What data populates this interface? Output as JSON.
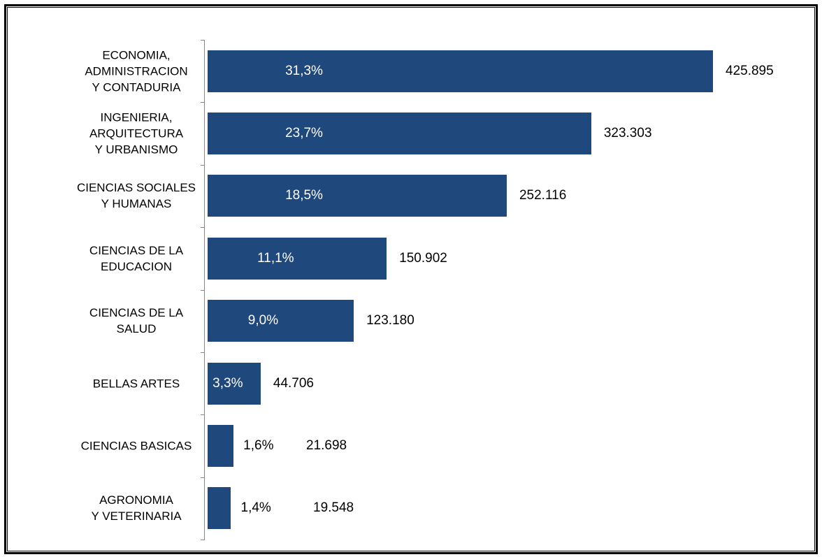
{
  "chart_data": {
    "type": "hbar",
    "categories": [
      "ECONOMIA,\nADMINISTRACION\nY CONTADURIA",
      "INGENIERIA,\nARQUITECTURA\nY URBANISMO",
      "CIENCIAS SOCIALES\nY HUMANAS",
      "CIENCIAS DE LA\nEDUCACION",
      "CIENCIAS DE LA\nSALUD",
      "BELLAS ARTES",
      "CIENCIAS BASICAS",
      "AGRONOMIA\nY VETERINARIA"
    ],
    "values": [
      425895,
      323303,
      252116,
      150902,
      123180,
      44706,
      21698,
      19548
    ],
    "value_labels": [
      "425.895",
      "323.303",
      "252.116",
      "150.902",
      "123.180",
      "44.706",
      "21.698",
      "19.548"
    ],
    "share_labels": [
      "31,3%",
      "23,7%",
      "18,5%",
      "11,1%",
      "9,0%",
      "3,3%",
      "1,6%",
      "1,4%"
    ],
    "color": "#1f497d"
  }
}
